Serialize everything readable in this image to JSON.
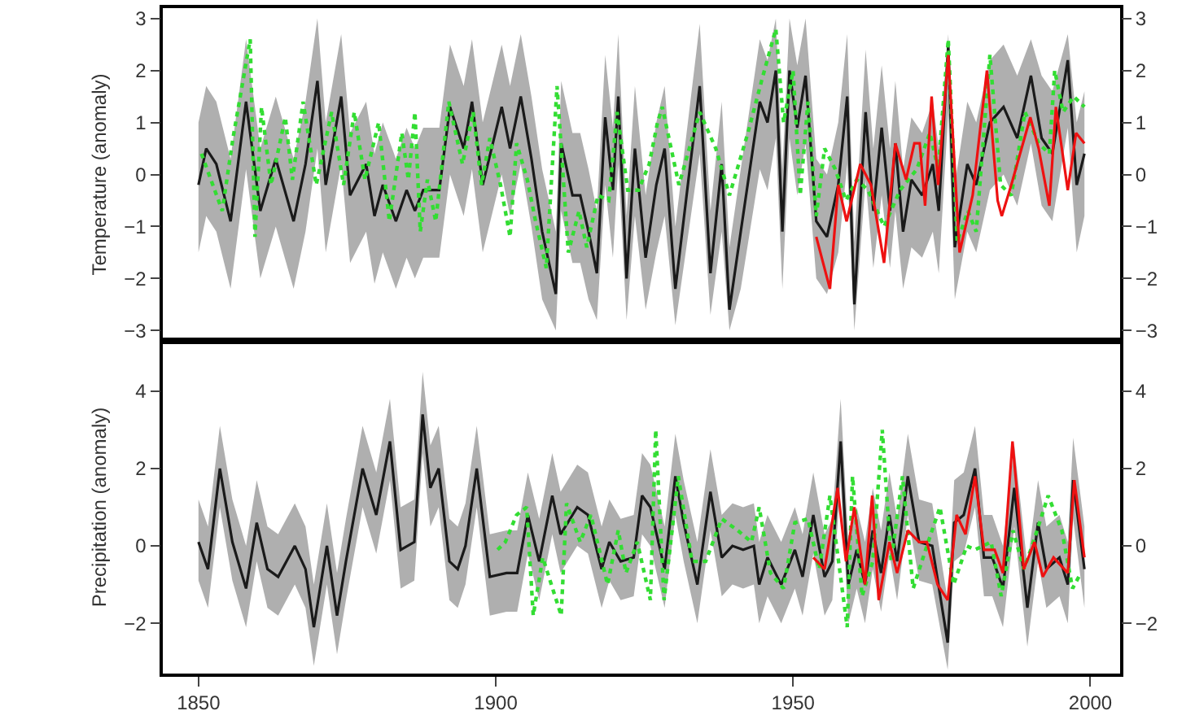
{
  "chart_data": [
    {
      "type": "line",
      "ylabel": "Temperature (anomaly)",
      "xlim": [
        1844,
        2005
      ],
      "ylim": [
        -3.2,
        3.2
      ],
      "yticks": [
        -3,
        -2,
        -1,
        0,
        1,
        2,
        3
      ],
      "y2lim": [
        -3.2,
        3.2
      ],
      "y2ticks": [
        -3,
        -2,
        -1,
        0,
        1,
        2,
        3
      ],
      "tick_labels": "y",
      "marker": "none",
      "series": [
        {
          "color": "#1a1a1a",
          "line_style": "solid",
          "x": [
            1850,
            1851.3,
            1853,
            1855.4,
            1858,
            1860.4,
            1863,
            1866,
            1868,
            1870,
            1871.4,
            1874,
            1875.5,
            1878.2,
            1879.6,
            1881,
            1883.2,
            1885,
            1886.4,
            1887.8,
            1890.5,
            1892.3,
            1894.6,
            1896,
            1897.8,
            1901,
            1902.4,
            1904.2,
            1906,
            1907.8,
            1910.1,
            1911,
            1912.9,
            1914.2,
            1915.6,
            1917,
            1918.4,
            1919.7,
            1920.6,
            1922,
            1923.4,
            1925.2,
            1927,
            1928.4,
            1930.2,
            1934.3,
            1936.1,
            1938,
            1939.3,
            1941.2,
            1944.4,
            1945.7,
            1947.1,
            1948.2,
            1949.4,
            1950.7,
            1952.1,
            1953.9,
            1955.7,
            1957.6,
            1959.1,
            1960.3,
            1962.2,
            1963.5,
            1964.9,
            1966.3,
            1967.2,
            1968.5,
            1969.9,
            1971.7,
            1973.5,
            1974.5,
            1976.1,
            1977.2,
            1979.3,
            1980.8,
            1983.1,
            1985.4,
            1987.7,
            1990,
            1991.8,
            1993.6,
            1996.2,
            1997.7,
            1999
          ],
          "values": [
            -0.2,
            0.5,
            0.2,
            -0.9,
            1.4,
            -0.7,
            0.3,
            -0.9,
            0.2,
            1.8,
            -0.2,
            1.5,
            -0.4,
            0.2,
            -0.8,
            -0.2,
            -0.9,
            -0.3,
            -0.7,
            -0.3,
            -0.3,
            1.3,
            0.5,
            1.4,
            -0.2,
            1.3,
            0.5,
            1.5,
            0.3,
            -1.1,
            -2.3,
            0.6,
            -0.4,
            -0.4,
            -1.1,
            -1.9,
            1.1,
            -0.3,
            1.5,
            -2.0,
            0.5,
            -1.6,
            -0.2,
            0.5,
            -2.2,
            1.7,
            -1.9,
            0.2,
            -2.6,
            -1.1,
            1.4,
            1.0,
            2.0,
            -1.1,
            2.0,
            0.9,
            1.9,
            -0.9,
            -1.2,
            -0.2,
            1.5,
            -2.5,
            1.2,
            -0.7,
            0.9,
            -0.7,
            0.6,
            -1.1,
            -0.1,
            -0.4,
            0.2,
            -0.7,
            2.5,
            -1.4,
            0.2,
            -0.2,
            1.0,
            1.3,
            0.7,
            1.9,
            0.7,
            0.4,
            2.2,
            -0.2,
            0.4
          ],
          "lower": [
            -1.5,
            -0.8,
            -1.1,
            -2.2,
            0.1,
            -2.0,
            -1.0,
            -2.2,
            -1.1,
            0.5,
            -1.5,
            0.2,
            -1.7,
            -1.1,
            -2.1,
            -1.5,
            -2.2,
            -1.6,
            -2.0,
            -1.6,
            -1.6,
            0.0,
            -0.8,
            0.1,
            -1.5,
            0.0,
            -0.8,
            0.2,
            -1.0,
            -2.4,
            -3.0,
            -0.7,
            -1.7,
            -1.7,
            -2.4,
            -2.8,
            -0.2,
            -1.6,
            0.2,
            -2.8,
            -0.8,
            -2.6,
            -1.5,
            -0.8,
            -2.9,
            0.4,
            -2.7,
            -1.1,
            -3.0,
            -2.2,
            0.1,
            -0.3,
            0.7,
            -2.2,
            0.7,
            -0.4,
            0.6,
            -2.0,
            -2.3,
            -1.5,
            0.2,
            -3.0,
            -0.1,
            -1.8,
            -0.4,
            -1.8,
            -0.7,
            -2.2,
            -1.4,
            -1.6,
            -1.1,
            -1.9,
            1.2,
            -2.4,
            -1.1,
            -1.5,
            -0.3,
            0.0,
            -0.6,
            0.6,
            -0.6,
            -0.9,
            0.9,
            -1.5,
            -0.8
          ],
          "upper": [
            1.0,
            1.7,
            1.4,
            0.3,
            2.6,
            0.5,
            1.5,
            0.3,
            1.4,
            3.0,
            1.0,
            2.7,
            0.8,
            1.4,
            0.4,
            1.0,
            0.3,
            0.9,
            0.5,
            0.9,
            0.9,
            2.5,
            1.7,
            2.6,
            1.0,
            2.5,
            1.7,
            2.7,
            1.5,
            0.1,
            -1.1,
            1.8,
            0.8,
            0.8,
            0.1,
            -0.7,
            2.3,
            0.9,
            2.7,
            -0.8,
            1.7,
            -0.4,
            1.0,
            1.7,
            -1.0,
            2.9,
            -0.7,
            1.4,
            -1.4,
            0.1,
            2.6,
            2.2,
            3.0,
            0.1,
            3.0,
            2.1,
            3.0,
            0.3,
            0.0,
            1.0,
            2.7,
            -1.3,
            2.4,
            0.5,
            2.1,
            0.5,
            1.8,
            0.1,
            1.1,
            0.8,
            1.4,
            0.5,
            2.7,
            -0.2,
            1.4,
            1.0,
            2.2,
            2.5,
            1.9,
            2.6,
            1.9,
            1.6,
            2.7,
            1.0,
            1.6
          ]
        },
        {
          "color": "#33dd33",
          "line_style": "dotted",
          "x": [
            1850.5,
            1854,
            1855.8,
            1858.7,
            1859.5,
            1860.6,
            1862.2,
            1864.6,
            1865.8,
            1867.6,
            1869.8,
            1872.4,
            1874.4,
            1876.2,
            1878,
            1880.3,
            1882.1,
            1884.2,
            1885.3,
            1886.4,
            1887.3,
            1888.5,
            1889.9,
            1892.1,
            1894.4,
            1896.2,
            1897.6,
            1899,
            1900.8,
            1902.4,
            1903.5,
            1905.3,
            1906.7,
            1908.5,
            1910.3,
            1912.2,
            1914,
            1915.3,
            1917.2,
            1919,
            1920.4,
            1922.2,
            1924,
            1925.8,
            1927.2,
            1928,
            1930.8,
            1934.3,
            1937,
            1939.3,
            1942.4,
            1944.7,
            1947.1,
            1948.4,
            1950,
            1951.2,
            1952.5,
            1953.9,
            1955.3,
            1957.1,
            1958.9,
            1960.7,
            1962.6,
            1965.3,
            1968,
            1970.8,
            1973,
            1974.4,
            1976.1,
            1977.6,
            1979.4,
            1980.8,
            1983.1,
            1984.9,
            1986.7,
            1989,
            1991.3,
            1993.1,
            1994,
            1995.4,
            1997.2,
            1999
          ],
          "values": [
            0.4,
            -0.7,
            0.7,
            2.6,
            -1.2,
            1.3,
            -0.2,
            1.1,
            -0.1,
            1.4,
            -0.2,
            1.2,
            -0.2,
            1.2,
            -0.1,
            1.0,
            -0.9,
            0.8,
            -0.1,
            1.2,
            -1.1,
            -0.1,
            -0.9,
            1.4,
            0.2,
            1.2,
            -0.2,
            0.7,
            -0.2,
            -1.2,
            0.6,
            -0.1,
            -0.9,
            -1.8,
            1.7,
            -1.5,
            -0.7,
            -1.4,
            -0.4,
            -0.5,
            1.2,
            -0.3,
            -0.3,
            0.2,
            1.0,
            1.3,
            -0.2,
            1.2,
            0.5,
            -0.4,
            0.8,
            1.8,
            2.8,
            1.0,
            2.0,
            -0.4,
            1.4,
            -0.8,
            0.5,
            0.1,
            -0.5,
            -0.1,
            -0.3,
            -1.0,
            -0.3,
            0.1,
            0.8,
            0.1,
            2.6,
            -1.3,
            -0.7,
            -1.1,
            2.3,
            -0.2,
            -0.4,
            1.2,
            0.6,
            0.4,
            2.0,
            1.2,
            1.5,
            1.3
          ]
        },
        {
          "color": "#ee1111",
          "line_style": "solid",
          "x": [
            1953.9,
            1956.2,
            1957.6,
            1959,
            1961.3,
            1963.1,
            1965.3,
            1967.2,
            1969,
            1970.4,
            1971.3,
            1972.2,
            1973.3,
            1974.4,
            1976.1,
            1978,
            1980.2,
            1982.6,
            1984.4,
            1985.1,
            1986.7,
            1989.9,
            1991.3,
            1993.1,
            1994.2,
            1996.2,
            1997.6,
            1999
          ],
          "values": [
            -1.2,
            -2.2,
            -0.2,
            -0.9,
            0.2,
            -0.2,
            -1.7,
            0.6,
            -0.1,
            0.6,
            0.6,
            -0.6,
            1.5,
            -0.2,
            2.3,
            -1.5,
            -0.4,
            2.0,
            -0.5,
            -0.8,
            -0.2,
            1.1,
            0.5,
            -0.6,
            1.3,
            -0.3,
            0.8,
            0.6
          ]
        }
      ]
    },
    {
      "type": "line",
      "ylabel": "Precipitation (anomaly)",
      "xlim": [
        1844,
        2005
      ],
      "xticks": [
        1850,
        1900,
        1950,
        2000
      ],
      "ylim": [
        -3.3,
        5.3
      ],
      "yticks": [
        -2,
        0,
        2,
        4
      ],
      "y2lim": [
        -3.3,
        5.3
      ],
      "y2ticks": [
        -2,
        0,
        2,
        4
      ],
      "marker": "none",
      "series": [
        {
          "color": "#1a1a1a",
          "line_style": "solid",
          "x": [
            1850,
            1851.6,
            1853.6,
            1855.7,
            1858,
            1859.8,
            1861.6,
            1863.4,
            1866.2,
            1868,
            1869.4,
            1871.6,
            1873.3,
            1874.8,
            1877.6,
            1879.9,
            1882.2,
            1884,
            1886.3,
            1887.7,
            1889,
            1890.4,
            1892.2,
            1893.6,
            1894.9,
            1896.8,
            1899,
            1901.8,
            1903.6,
            1905.4,
            1907.3,
            1909.5,
            1910.9,
            1913.7,
            1915.5,
            1917.8,
            1919.1,
            1921,
            1923.2,
            1924.6,
            1926,
            1928.4,
            1930.2,
            1931.6,
            1933.9,
            1936.1,
            1938,
            1939.8,
            1941.6,
            1943.4,
            1944.3,
            1945.7,
            1948,
            1950.3,
            1951.6,
            1953.4,
            1955.3,
            1956.6,
            1958,
            1959.3,
            1960.7,
            1962.1,
            1963.4,
            1964.8,
            1966.2,
            1967.5,
            1969.3,
            1971.2,
            1973.4,
            1976,
            1977.1,
            1978.7,
            1980.6,
            1982.1,
            1983.5,
            1985.3,
            1987.2,
            1989.4,
            1991.2,
            1992.6,
            1994.8,
            1996.2,
            1997.1,
            1999
          ],
          "values": [
            0.1,
            -0.6,
            2.0,
            0.1,
            -1.1,
            0.6,
            -0.6,
            -0.8,
            0.0,
            -0.6,
            -2.1,
            0.0,
            -1.8,
            -0.4,
            2.0,
            0.8,
            2.7,
            -0.1,
            0.1,
            3.4,
            1.5,
            2.0,
            -0.4,
            -0.6,
            0.0,
            2.0,
            -0.8,
            -0.7,
            -0.7,
            0.8,
            -0.4,
            1.3,
            0.3,
            1.0,
            0.8,
            -0.6,
            0.1,
            -0.4,
            -0.3,
            1.3,
            1.0,
            -0.6,
            1.8,
            0.6,
            -1.0,
            1.4,
            -0.3,
            0.0,
            -0.1,
            0.0,
            -1.0,
            -0.3,
            -1.0,
            -0.1,
            -0.8,
            0.8,
            -0.8,
            -0.4,
            2.7,
            -1.0,
            -0.1,
            -1.0,
            0.4,
            -0.7,
            0.8,
            -0.4,
            1.8,
            0.1,
            0.0,
            -2.5,
            0.6,
            0.8,
            2.0,
            -0.3,
            -0.3,
            -1.1,
            1.5,
            -1.6,
            0.6,
            -0.6,
            -0.3,
            -1.0,
            1.7,
            -0.6
          ],
          "lower": [
            -0.9,
            -1.6,
            1.0,
            -0.9,
            -2.1,
            -0.4,
            -1.6,
            -1.8,
            -1.0,
            -1.6,
            -3.1,
            -1.0,
            -2.8,
            -1.4,
            1.0,
            -0.2,
            1.7,
            -1.1,
            -0.9,
            2.4,
            0.5,
            1.0,
            -1.4,
            -1.6,
            -1.0,
            1.0,
            -1.8,
            -1.7,
            -1.7,
            -0.2,
            -1.4,
            0.3,
            -0.7,
            0.0,
            -0.2,
            -1.6,
            -0.9,
            -1.4,
            -1.3,
            0.3,
            0.0,
            -1.6,
            0.8,
            -0.4,
            -2.0,
            0.4,
            -1.3,
            -1.0,
            -1.1,
            -1.0,
            -2.0,
            -1.3,
            -2.0,
            -1.1,
            -1.8,
            -0.2,
            -1.8,
            -1.4,
            1.7,
            -2.0,
            -1.1,
            -2.0,
            -0.6,
            -1.7,
            -0.2,
            -1.4,
            0.8,
            -0.9,
            -1.0,
            -3.2,
            -0.4,
            -0.2,
            1.0,
            -1.3,
            -1.3,
            -2.1,
            0.5,
            -2.6,
            -0.4,
            -1.6,
            -1.3,
            -2.0,
            0.7,
            -1.6
          ],
          "upper": [
            1.2,
            0.5,
            3.1,
            1.2,
            0.0,
            1.7,
            0.5,
            0.3,
            1.1,
            0.5,
            -1.0,
            1.1,
            -0.7,
            0.7,
            3.1,
            1.9,
            3.8,
            1.0,
            1.2,
            4.5,
            2.6,
            3.1,
            0.7,
            0.5,
            1.1,
            3.1,
            0.3,
            0.4,
            0.4,
            1.9,
            0.7,
            2.4,
            1.4,
            2.1,
            1.9,
            0.5,
            1.2,
            0.7,
            0.8,
            2.4,
            2.1,
            0.5,
            2.9,
            1.7,
            0.1,
            2.5,
            0.8,
            1.1,
            1.0,
            1.1,
            0.1,
            0.8,
            0.1,
            1.0,
            0.3,
            1.9,
            0.3,
            0.7,
            3.8,
            0.1,
            1.0,
            0.1,
            1.5,
            0.4,
            1.9,
            0.7,
            2.9,
            1.2,
            1.1,
            -1.4,
            1.7,
            1.9,
            3.1,
            0.8,
            0.8,
            0.0,
            2.6,
            -0.5,
            1.7,
            0.5,
            0.8,
            0.1,
            2.8,
            0.5
          ]
        },
        {
          "color": "#33dd33",
          "line_style": "dotted",
          "x": [
            1900.3,
            1901.6,
            1903.5,
            1905.2,
            1906.3,
            1907.9,
            1911,
            1911.9,
            1914.2,
            1916,
            1918.8,
            1920.6,
            1921.9,
            1923.8,
            1926,
            1926.9,
            1928.3,
            1930.7,
            1933,
            1935.3,
            1938,
            1940.7,
            1943,
            1944.3,
            1946.2,
            1948.4,
            1950.3,
            1952.5,
            1954.4,
            1956.2,
            1959.1,
            1960,
            1961.6,
            1963.4,
            1965,
            1966.5,
            1968.4,
            1970.2,
            1972.5,
            1974.7,
            1977,
            1979.2,
            1980.6,
            1983.3,
            1985,
            1987,
            1988.8,
            1990.2,
            1992.9,
            1995.2,
            1997,
            1998.4
          ],
          "values": [
            -0.1,
            0.1,
            0.8,
            1.0,
            -1.8,
            -0.3,
            -1.8,
            1.1,
            0.1,
            0.8,
            -1.0,
            0.4,
            -0.7,
            0.1,
            -1.4,
            3.0,
            -1.4,
            1.8,
            -0.4,
            -0.4,
            0.7,
            0.4,
            0.1,
            1.0,
            -0.7,
            -1.1,
            0.6,
            0.7,
            -0.6,
            1.3,
            -2.1,
            1.8,
            -1.3,
            -0.4,
            3.0,
            -0.4,
            1.8,
            -1.1,
            0.0,
            1.0,
            -1.0,
            0.0,
            -0.1,
            0.1,
            -1.3,
            0.4,
            -0.6,
            0.0,
            1.3,
            0.4,
            -1.1,
            -0.7
          ]
        },
        {
          "color": "#ee1111",
          "line_style": "solid",
          "x": [
            1953.4,
            1955.3,
            1957.5,
            1958.9,
            1960.3,
            1962.1,
            1963.3,
            1964.4,
            1966.2,
            1967.5,
            1969.3,
            1971.2,
            1972.5,
            1974.3,
            1976,
            1977.5,
            1979,
            1980.6,
            1982.1,
            1983.9,
            1985.3,
            1986.9,
            1988.8,
            1990.6,
            1992,
            1993.8,
            1996.2,
            1997.3,
            1999
          ],
          "values": [
            -0.3,
            -0.6,
            1.5,
            -0.4,
            1.0,
            -1.0,
            1.3,
            -1.4,
            0.1,
            -0.7,
            0.4,
            0.1,
            0.1,
            -1.0,
            -1.4,
            0.8,
            0.3,
            1.8,
            -0.1,
            -0.1,
            -0.7,
            2.7,
            -0.6,
            0.1,
            -0.8,
            -0.3,
            -0.7,
            1.7,
            -0.3
          ]
        }
      ]
    }
  ]
}
